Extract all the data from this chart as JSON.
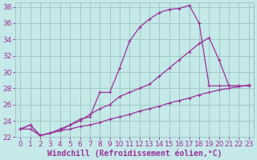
{
  "xlabel": "Windchill (Refroidissement éolien,°C)",
  "xlim": [
    -0.5,
    23.5
  ],
  "ylim": [
    22,
    38.5
  ],
  "yticks": [
    22,
    24,
    26,
    28,
    30,
    32,
    34,
    36,
    38
  ],
  "xticks": [
    0,
    1,
    2,
    3,
    4,
    5,
    6,
    7,
    8,
    9,
    10,
    11,
    12,
    13,
    14,
    15,
    16,
    17,
    18,
    19,
    20,
    21,
    22,
    23
  ],
  "bg_color": "#c5e8e8",
  "grid_color": "#a0c8c8",
  "line_color": "#993399",
  "line1_x": [
    0,
    1,
    2,
    3,
    4,
    5,
    6,
    7,
    8,
    9,
    10,
    11,
    12,
    13,
    14,
    15,
    16,
    17,
    18,
    19,
    20,
    21,
    22,
    23
  ],
  "line1_y": [
    23.0,
    23.0,
    22.2,
    22.5,
    22.8,
    23.0,
    23.3,
    23.5,
    23.8,
    24.2,
    24.5,
    24.8,
    25.2,
    25.5,
    25.8,
    26.2,
    26.5,
    26.8,
    27.2,
    27.5,
    27.8,
    28.0,
    28.2,
    28.4
  ],
  "line2_x": [
    0,
    1,
    2,
    3,
    4,
    5,
    6,
    7,
    8,
    9,
    10,
    11,
    12,
    13,
    14,
    15,
    16,
    17,
    18,
    19,
    20,
    21,
    22,
    23
  ],
  "line2_y": [
    23.0,
    23.5,
    22.2,
    22.5,
    22.8,
    23.5,
    24.2,
    24.5,
    27.5,
    27.5,
    30.5,
    33.8,
    35.5,
    36.5,
    37.3,
    37.7,
    37.8,
    38.2,
    36.0,
    28.3,
    28.3,
    28.3,
    28.3,
    28.3
  ],
  "line3_x": [
    0,
    1,
    2,
    3,
    4,
    5,
    6,
    7,
    8,
    9,
    10,
    11,
    12,
    13,
    14,
    15,
    16,
    17,
    18,
    19,
    20,
    21,
    22,
    23
  ],
  "line3_y": [
    23.0,
    23.5,
    22.2,
    22.5,
    23.0,
    23.5,
    24.0,
    24.8,
    25.5,
    26.0,
    27.0,
    27.5,
    28.0,
    28.5,
    29.5,
    30.5,
    31.5,
    32.5,
    33.5,
    34.2,
    31.5,
    28.3,
    28.3,
    28.3
  ],
  "font_size": 6.5,
  "xlabel_fontsize": 7.0
}
